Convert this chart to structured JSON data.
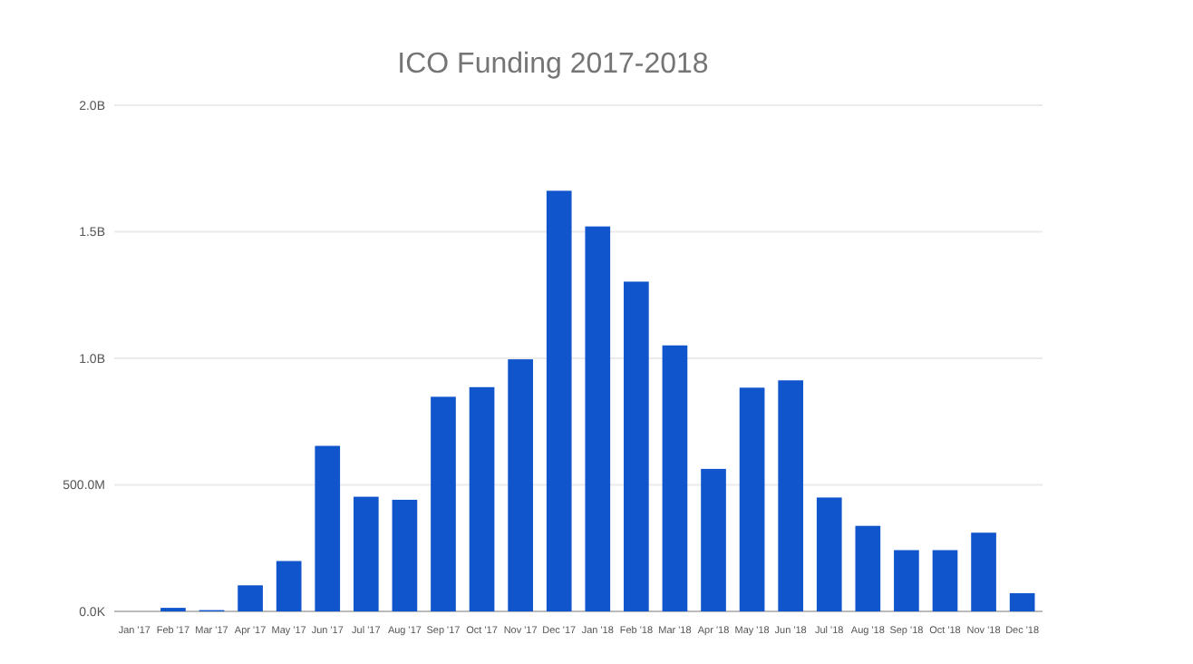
{
  "chart_data": {
    "type": "bar",
    "title": "ICO Funding 2017-2018",
    "categories": [
      "Jan '17",
      "Feb '17",
      "Mar '17",
      "Apr '17",
      "May '17",
      "Jun '17",
      "Jul '17",
      "Aug '17",
      "Sep '17",
      "Oct '17",
      "Nov '17",
      "Dec '17",
      "Jan '18",
      "Feb '18",
      "Mar '18",
      "Apr '18",
      "May '18",
      "Jun '18",
      "Jul '18",
      "Aug '18",
      "Sep '18",
      "Oct '18",
      "Nov '18",
      "Dec '18"
    ],
    "values": [
      0,
      14000000,
      5000000,
      103000000,
      199000000,
      654000000,
      453000000,
      441000000,
      848000000,
      886000000,
      996000000,
      1662000000,
      1521000000,
      1303000000,
      1051000000,
      563000000,
      884000000,
      913000000,
      450000000,
      338000000,
      242000000,
      242000000,
      311000000,
      72000000
    ],
    "color": "#1155cc",
    "ylim": [
      0,
      2000000000
    ],
    "yticks": [
      {
        "value": 0,
        "label": "0.0K"
      },
      {
        "value": 500000000,
        "label": "500.0M"
      },
      {
        "value": 1000000000,
        "label": "1.0B"
      },
      {
        "value": 1500000000,
        "label": "1.5B"
      },
      {
        "value": 2000000000,
        "label": "2.0B"
      }
    ],
    "grid": "y"
  }
}
